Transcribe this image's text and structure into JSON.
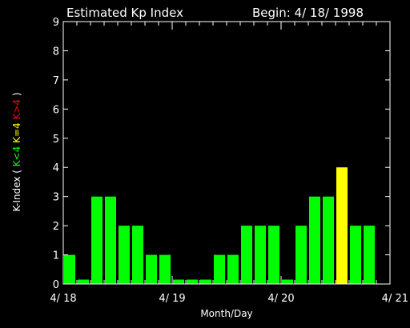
{
  "chart_data": {
    "type": "bar",
    "title": "Estimated Kp Index",
    "subtitle": "Begin: 4/ 18/ 1998",
    "xlabel": "Month/Day",
    "ylabel_parts": [
      {
        "text": "K-Index ( ",
        "color": "#ffffff"
      },
      {
        "text": "K<4 ",
        "color": "#00ff00"
      },
      {
        "text": "K=4 ",
        "color": "#ffff00"
      },
      {
        "text": "K>4",
        "color": "#ff0000"
      },
      {
        "text": " )",
        "color": "#ffffff"
      }
    ],
    "ylim": [
      0,
      9
    ],
    "yticks": [
      "0",
      "1",
      "2",
      "3",
      "4",
      "5",
      "6",
      "7",
      "8",
      "9"
    ],
    "xticks": [
      "4/ 18",
      "4/ 19",
      "4/ 20",
      "4/ 21"
    ],
    "values": [
      1,
      0.15,
      3,
      3,
      2,
      2,
      1,
      1,
      0.15,
      0.15,
      0.15,
      1,
      1,
      2,
      2,
      2,
      0.15,
      2,
      3,
      3,
      4,
      2,
      2
    ],
    "colors": {
      "below": "#00ff00",
      "equal": "#ffff00",
      "above": "#ff0000",
      "axis": "#ffffff",
      "background": "#000000"
    }
  }
}
